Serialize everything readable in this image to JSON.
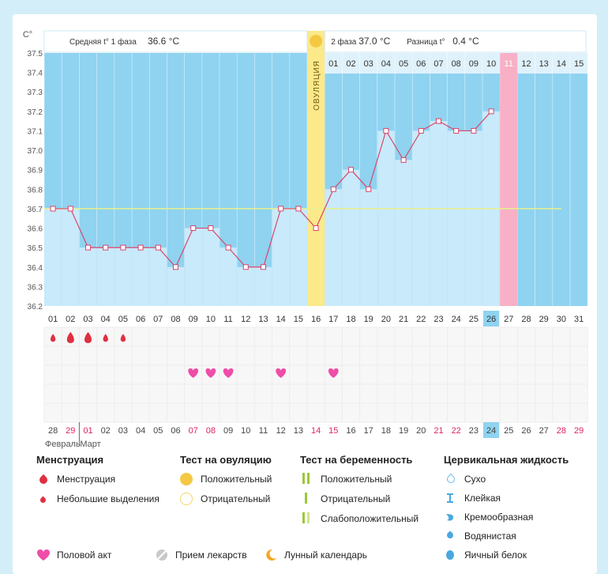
{
  "chart_data": {
    "type": "line",
    "y_unit": "C°",
    "ylim": [
      36.2,
      37.5
    ],
    "y_ticks": [
      "37.5",
      "37.4",
      "37.3",
      "37.2",
      "37.1",
      "37.0",
      "36.9",
      "36.8",
      "36.7",
      "36.6",
      "36.5",
      "36.4",
      "36.3",
      "36.2"
    ],
    "header": {
      "phase1_label": "Средняя t° 1 фаза",
      "phase1_value": "36.6 °C",
      "phase2_label": "2 фаза",
      "phase2_value": "37.0 °C",
      "diff_label": "Разница t°",
      "diff_value": "0.4 °C"
    },
    "ovulation_label": "ОВУЛЯЦИЯ",
    "ovulation_day": 16,
    "days": [
      "01",
      "02",
      "03",
      "04",
      "05",
      "06",
      "07",
      "08",
      "09",
      "10",
      "11",
      "12",
      "13",
      "14",
      "15",
      "16",
      "17",
      "18",
      "19",
      "20",
      "21",
      "22",
      "23",
      "24",
      "25",
      "26",
      "27",
      "28",
      "29",
      "30",
      "31"
    ],
    "highlight_day": "26",
    "phase2_days": [
      "01",
      "02",
      "03",
      "04",
      "05",
      "06",
      "07",
      "08",
      "09",
      "10",
      "11",
      "12",
      "13",
      "14",
      "15"
    ],
    "phase2_highlight": "11",
    "temperatures": [
      36.7,
      36.7,
      36.5,
      36.5,
      36.5,
      36.5,
      36.5,
      36.4,
      36.6,
      36.6,
      36.5,
      36.4,
      36.4,
      36.7,
      36.7,
      36.6,
      36.8,
      36.9,
      36.8,
      37.1,
      36.95,
      37.1,
      37.15,
      37.1,
      37.1,
      37.2
    ],
    "coverline": 36.7,
    "menstruation": [
      {
        "day": 1,
        "size": "small"
      },
      {
        "day": 2,
        "size": "large"
      },
      {
        "day": 3,
        "size": "large"
      },
      {
        "day": 4,
        "size": "small"
      },
      {
        "day": 5,
        "size": "small"
      }
    ],
    "intercourse_days": [
      9,
      10,
      11,
      14,
      17
    ],
    "calendar_dates": [
      {
        "label": "28",
        "red": false
      },
      {
        "label": "29",
        "red": true
      },
      {
        "label": "01",
        "red": true
      },
      {
        "label": "02",
        "red": false
      },
      {
        "label": "03",
        "red": false
      },
      {
        "label": "04",
        "red": false
      },
      {
        "label": "05",
        "red": false
      },
      {
        "label": "06",
        "red": false
      },
      {
        "label": "07",
        "red": true
      },
      {
        "label": "08",
        "red": true
      },
      {
        "label": "09",
        "red": false
      },
      {
        "label": "10",
        "red": false
      },
      {
        "label": "11",
        "red": false
      },
      {
        "label": "12",
        "red": false
      },
      {
        "label": "13",
        "red": false
      },
      {
        "label": "14",
        "red": true
      },
      {
        "label": "15",
        "red": true
      },
      {
        "label": "16",
        "red": false
      },
      {
        "label": "17",
        "red": false
      },
      {
        "label": "18",
        "red": false
      },
      {
        "label": "19",
        "red": false
      },
      {
        "label": "20",
        "red": false
      },
      {
        "label": "21",
        "red": true
      },
      {
        "label": "22",
        "red": true
      },
      {
        "label": "23",
        "red": false
      },
      {
        "label": "24",
        "red": false
      },
      {
        "label": "25",
        "red": false
      },
      {
        "label": "26",
        "red": false
      },
      {
        "label": "27",
        "red": false
      },
      {
        "label": "28",
        "red": true
      },
      {
        "label": "29",
        "red": true
      }
    ],
    "calendar_highlight": "24",
    "month_labels": [
      "Февраль",
      "Март"
    ]
  },
  "legend": {
    "menstruation": {
      "title": "Менструация",
      "items": [
        "Менструация",
        "Небольшие выделения"
      ]
    },
    "ovulation_test": {
      "title": "Тест на овуляцию",
      "items": [
        "Положительный",
        "Отрицательный"
      ]
    },
    "pregnancy_test": {
      "title": "Тест на беременность",
      "items": [
        "Положительный",
        "Отрицательный",
        "Слабоположительный"
      ]
    },
    "cervical": {
      "title": "Цервикальная жидкость",
      "items": [
        "Сухо",
        "Клейкая",
        "Кремообразная",
        "Водянистая",
        "Яичный белок"
      ]
    },
    "bottom": [
      "Половой акт",
      "Прием лекарств",
      "Лунный календарь"
    ]
  },
  "colors": {
    "blue_bg": "#8fd3f0",
    "bar_fill": "#c9eafb",
    "line": "#d9456b",
    "ovulation": "#fbe98a",
    "pink": "#f8b0c6",
    "heart": "#ef4da8",
    "drop": "#e03040"
  }
}
